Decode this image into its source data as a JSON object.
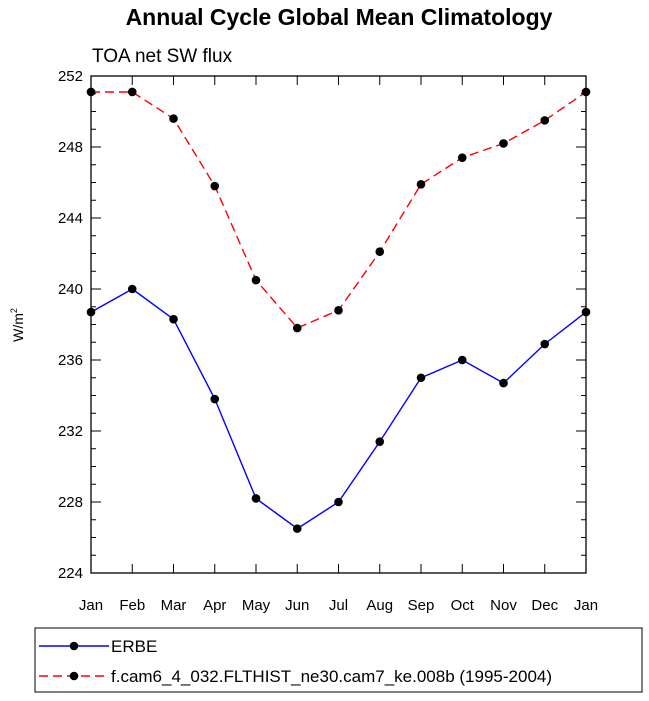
{
  "chart_data": {
    "type": "line",
    "title": "Annual Cycle Global Mean Climatology",
    "subtitle": "TOA net SW flux",
    "ylabel": {
      "base": "W/m",
      "sup": "2"
    },
    "xlabel": "",
    "categories": [
      "Jan",
      "Feb",
      "Mar",
      "Apr",
      "May",
      "Jun",
      "Jul",
      "Aug",
      "Sep",
      "Oct",
      "Nov",
      "Dec",
      "Jan"
    ],
    "ylim": [
      224,
      252
    ],
    "yticks": [
      224,
      228,
      232,
      236,
      240,
      244,
      248,
      252
    ],
    "y_minor_step": 1,
    "grid": false,
    "legend_position": "bottom",
    "series": [
      {
        "name": "ERBE",
        "color": "#0000ff",
        "dash": "solid",
        "marker": "circle",
        "values": [
          238.7,
          240.0,
          238.3,
          233.8,
          228.2,
          226.5,
          228.0,
          231.4,
          235.0,
          236.0,
          234.7,
          236.9,
          238.7
        ]
      },
      {
        "name": "f.cam6_4_032.FLTHIST_ne30.cam7_ke.008b (1995-2004)",
        "color": "#ff0000",
        "dash": "dashed",
        "marker": "circle",
        "values": [
          251.1,
          251.1,
          249.6,
          245.8,
          240.5,
          237.8,
          238.8,
          242.1,
          245.9,
          247.4,
          248.2,
          249.5,
          251.1
        ]
      }
    ]
  }
}
